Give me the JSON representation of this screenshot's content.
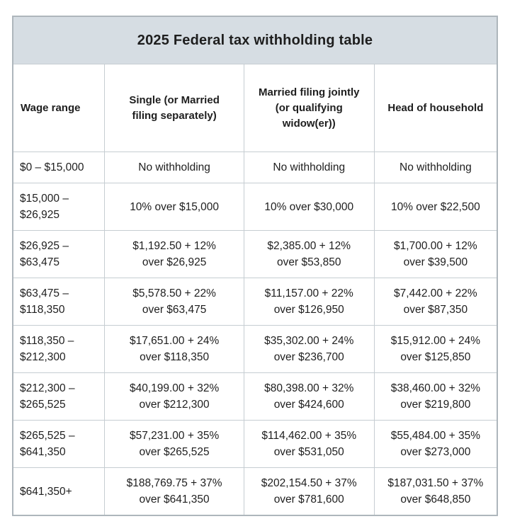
{
  "table": {
    "title": "2025 Federal tax withholding table",
    "columns": [
      "Wage range",
      "Single (or Married\nfiling separately)",
      "Married filing jointly\n(or qualifying\nwidow(er))",
      "Head of household"
    ],
    "rows": [
      [
        "$0 – $15,000",
        "No withholding",
        "No withholding",
        "No withholding"
      ],
      [
        "$15,000 –\n$26,925",
        "10% over $15,000",
        "10% over $30,000",
        "10% over $22,500"
      ],
      [
        "$26,925 –\n$63,475",
        "$1,192.50 + 12%\nover $26,925",
        "$2,385.00 + 12%\nover $53,850",
        "$1,700.00 + 12%\nover $39,500"
      ],
      [
        "$63,475 –\n$118,350",
        "$5,578.50 + 22%\nover $63,475",
        "$11,157.00 + 22%\nover $126,950",
        "$7,442.00 + 22%\nover $87,350"
      ],
      [
        "$118,350 –\n$212,300",
        "$17,651.00 + 24%\nover $118,350",
        "$35,302.00 + 24%\nover $236,700",
        "$15,912.00 + 24%\nover $125,850"
      ],
      [
        "$212,300 –\n$265,525",
        "$40,199.00 + 32%\nover $212,300",
        "$80,398.00 + 32%\nover $424,600",
        "$38,460.00 + 32%\nover $219,800"
      ],
      [
        "$265,525 –\n$641,350",
        "$57,231.00 + 35%\nover $265,525",
        "$114,462.00 + 35%\nover $531,050",
        "$55,484.00 + 35%\nover $273,000"
      ],
      [
        "$641,350+",
        "$188,769.75 + 37%\nover $641,350",
        "$202,154.50 + 37%\nover $781,600",
        "$187,031.50 + 37%\nover $648,850"
      ]
    ]
  },
  "colors": {
    "title_band_background": "#d6dde3",
    "grid_border": "#c6cdd2",
    "outer_border": "#aeb6bc",
    "text": "#1e1e1e",
    "page_background": "#ffffff"
  }
}
